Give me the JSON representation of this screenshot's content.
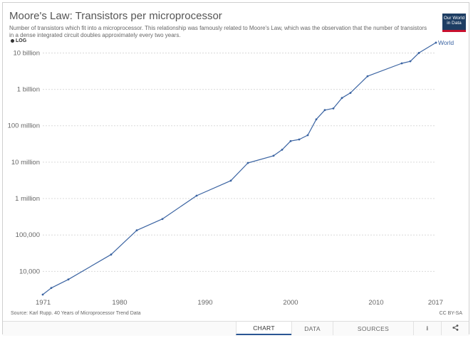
{
  "header": {
    "title": "Moore's Law: Transistors per microprocessor",
    "subtitle": "Number of transistors which fit into a microprocessor. This relationship was famously related to Moore's Law, which was the observation that the number of transistors in a dense integrated circuit doubles approximately every two years.",
    "log_toggle": "LOG",
    "logo_lines": [
      "Our World",
      "in Data"
    ]
  },
  "chart_data": {
    "type": "line",
    "title": "Moore's Law: Transistors per microprocessor",
    "xlabel": "",
    "ylabel": "",
    "yscale": "log",
    "xlim": [
      1971,
      2017
    ],
    "ylim": [
      2300,
      16000000000
    ],
    "grid": "horizontal dotted",
    "line_color": "#3b64a2",
    "x_ticks": [
      1971,
      1980,
      1990,
      2000,
      2010,
      2017
    ],
    "y_ticks": [
      {
        "value": 10000,
        "label": "10,000"
      },
      {
        "value": 100000,
        "label": "100,000"
      },
      {
        "value": 1000000,
        "label": "1 million"
      },
      {
        "value": 10000000,
        "label": "10 million"
      },
      {
        "value": 100000000,
        "label": "100 million"
      },
      {
        "value": 1000000000,
        "label": "1 billion"
      },
      {
        "value": 10000000000,
        "label": "10 billion"
      }
    ],
    "series": [
      {
        "name": "World",
        "points": [
          [
            1971,
            2300
          ],
          [
            1972,
            3500
          ],
          [
            1974,
            6000
          ],
          [
            1979,
            29000
          ],
          [
            1982,
            134000
          ],
          [
            1985,
            275000
          ],
          [
            1989,
            1200000
          ],
          [
            1993,
            3100000
          ],
          [
            1995,
            9500000
          ],
          [
            1998,
            15000000
          ],
          [
            1999,
            22000000
          ],
          [
            2000,
            38000000
          ],
          [
            2001,
            42000000
          ],
          [
            2002,
            55000000
          ],
          [
            2003,
            150000000
          ],
          [
            2004,
            270000000
          ],
          [
            2005,
            300000000
          ],
          [
            2006,
            580000000
          ],
          [
            2007,
            800000000
          ],
          [
            2009,
            2300000000
          ],
          [
            2013,
            5200000000
          ],
          [
            2014,
            5900000000
          ],
          [
            2015,
            10000000000
          ],
          [
            2017,
            19200000000
          ]
        ]
      }
    ]
  },
  "footer": {
    "source": "Source: Karl Rupp. 40 Years of Microprocessor Trend Data",
    "license": "CC BY-SA"
  },
  "tabs": {
    "chart": "CHART",
    "data": "DATA",
    "sources": "SOURCES",
    "download_icon": "download-icon",
    "share_icon": "share-icon"
  }
}
